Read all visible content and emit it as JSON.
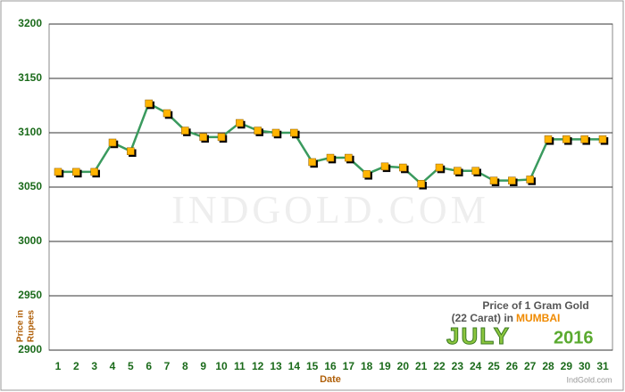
{
  "chart_data": {
    "type": "line",
    "watermark": "IndGold.com",
    "ylabel": [
      "Price in",
      "Rupees"
    ],
    "xlabel": "Date",
    "annotation": {
      "line1": "Price of 1 Gram Gold",
      "line2": "(22 Carat) in",
      "city": "MUMBAI",
      "month": "JULY",
      "year": "2016",
      "site": "IndGold.com"
    },
    "categories": [
      "1",
      "2",
      "3",
      "4",
      "5",
      "6",
      "7",
      "8",
      "9",
      "10",
      "11",
      "12",
      "13",
      "14",
      "15",
      "16",
      "17",
      "18",
      "19",
      "20",
      "21",
      "22",
      "23",
      "24",
      "25",
      "26",
      "27",
      "28",
      "29",
      "30",
      "31"
    ],
    "values": [
      3064,
      3064,
      3064,
      3091,
      3083,
      3127,
      3118,
      3102,
      3096,
      3096,
      3109,
      3102,
      3100,
      3100,
      3073,
      3077,
      3077,
      3062,
      3069,
      3068,
      3053,
      3068,
      3065,
      3065,
      3056,
      3056,
      3057,
      3094,
      3094,
      3094,
      3094
    ],
    "color": "#3a9a5e",
    "marker_color": "#ffb400",
    "ylim": [
      2900,
      3200
    ],
    "yticks": [
      2900,
      2950,
      3000,
      3050,
      3100,
      3150,
      3200
    ],
    "grid": true
  }
}
